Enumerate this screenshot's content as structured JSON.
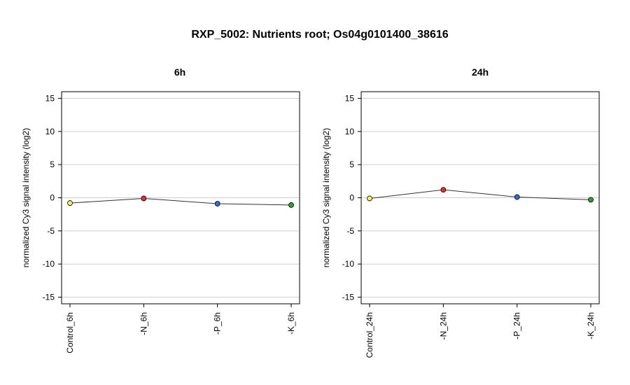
{
  "title": "RXP_5002: Nutrients root; Os04g0101400_38616",
  "chart_data": [
    {
      "type": "line",
      "title": "6h",
      "ylabel": "normalized Cy3 signal intensity (log2)",
      "ylim": [
        -16,
        16
      ],
      "yticks": [
        -15,
        -10,
        -5,
        0,
        5,
        10,
        15
      ],
      "grid": true,
      "categories": [
        "Control_6h",
        "-N_6h",
        "-P_6h",
        "-K_6h"
      ],
      "values": [
        -0.8,
        -0.1,
        -0.9,
        -1.1
      ],
      "point_colors": [
        "#f2f25a",
        "#e8302a",
        "#2f6fdb",
        "#2ea22e"
      ]
    },
    {
      "type": "line",
      "title": "24h",
      "ylabel": "normalized Cy3 signal intensity (log2)",
      "ylim": [
        -16,
        16
      ],
      "yticks": [
        -15,
        -10,
        -5,
        0,
        5,
        10,
        15
      ],
      "grid": true,
      "categories": [
        "Control_24h",
        "-N_24h",
        "-P_24h",
        "-K_24h"
      ],
      "values": [
        -0.1,
        1.2,
        0.1,
        -0.3
      ],
      "point_colors": [
        "#f2f25a",
        "#e8302a",
        "#2f6fdb",
        "#2ea22e"
      ]
    }
  ]
}
